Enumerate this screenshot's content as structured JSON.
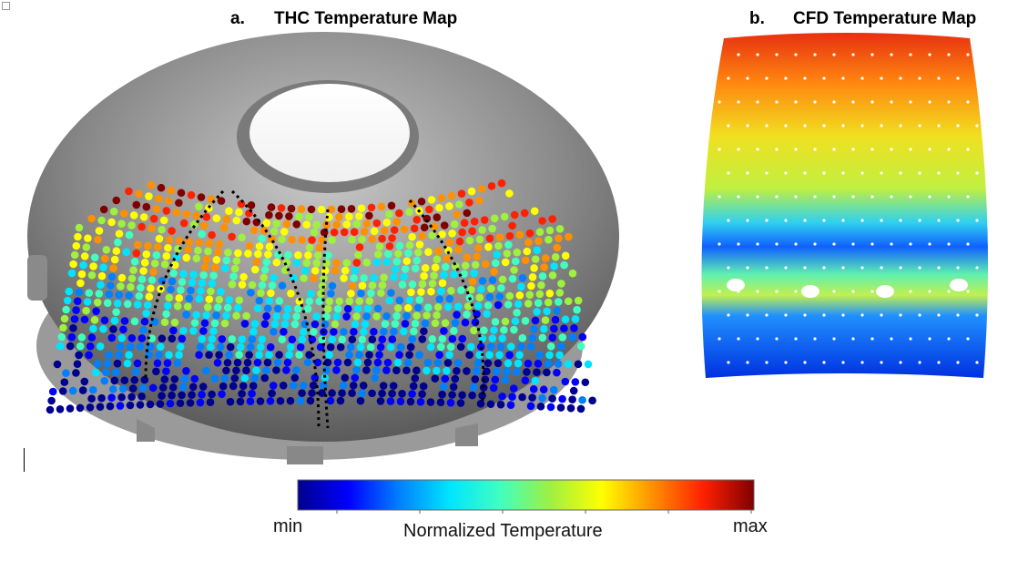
{
  "panels": {
    "a": {
      "letter": "a.",
      "title": "THC Temperature Map"
    },
    "b": {
      "letter": "b.",
      "title": "CFD Temperature Map"
    }
  },
  "colorbar": {
    "min_label": "min",
    "max_label": "max",
    "label": "Normalized Temperature",
    "colors": [
      "#00008f",
      "#0000ff",
      "#0080ff",
      "#00e5ff",
      "#40ffbf",
      "#a0f040",
      "#ffff00",
      "#ff9000",
      "#ff2000",
      "#800000"
    ]
  }
}
